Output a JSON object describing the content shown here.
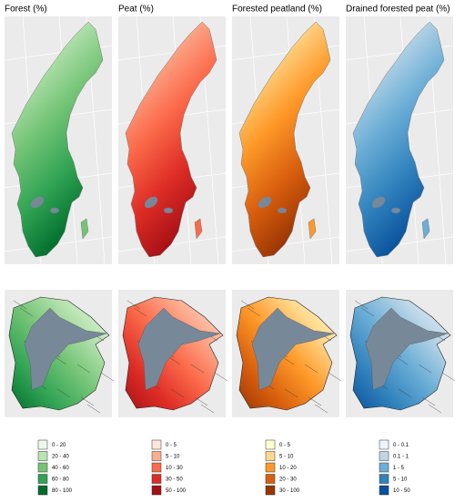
{
  "panels": [
    {
      "title": "Forest (%)",
      "legend": [
        {
          "label": "0 - 20",
          "color": "#edf8e9"
        },
        {
          "label": "20 - 40",
          "color": "#bae4b3"
        },
        {
          "label": "40 - 60",
          "color": "#74c476"
        },
        {
          "label": "60 - 80",
          "color": "#31a354"
        },
        {
          "label": "80 - 100",
          "color": "#006d2c"
        }
      ]
    },
    {
      "title": "Peat (%)",
      "legend": [
        {
          "label": "0 - 5",
          "color": "#fee5d9"
        },
        {
          "label": "5 - 10",
          "color": "#fcae91"
        },
        {
          "label": "10 - 30",
          "color": "#fb6a4a"
        },
        {
          "label": "30 - 50",
          "color": "#de2d26"
        },
        {
          "label": "50 - 100",
          "color": "#a50f15"
        }
      ]
    },
    {
      "title": "Forested peatland (%)",
      "legend": [
        {
          "label": "0 - 5",
          "color": "#ffffd4"
        },
        {
          "label": "5 - 10",
          "color": "#fed98e"
        },
        {
          "label": "10 - 20",
          "color": "#fe9929"
        },
        {
          "label": "20 - 30",
          "color": "#d95f0e"
        },
        {
          "label": "30 - 100",
          "color": "#993404"
        }
      ]
    },
    {
      "title": "Drained forested peat (%)",
      "legend": [
        {
          "label": "0 - 0.1",
          "color": "#eff3ff"
        },
        {
          "label": "0.1 - 1",
          "color": "#bdd7e7"
        },
        {
          "label": "1 - 5",
          "color": "#6baed6"
        },
        {
          "label": "5 - 10",
          "color": "#3182bd"
        },
        {
          "label": "10 - 50",
          "color": "#08519c"
        }
      ]
    }
  ]
}
